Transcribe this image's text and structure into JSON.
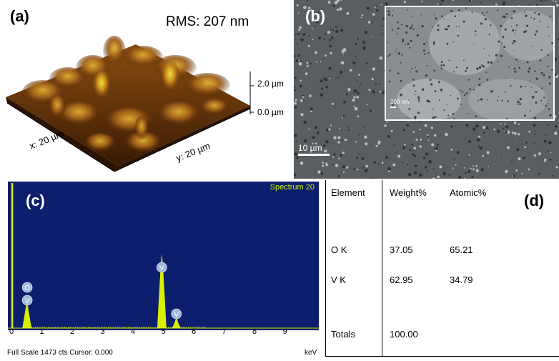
{
  "panel_a": {
    "label": "(a)",
    "rms": "RMS: 207 nm",
    "z_ticks": [
      "2.0 µm",
      "0.0 µm"
    ],
    "x_axis": "x: 20 µm",
    "y_axis": "y: 20 µm",
    "colors": {
      "low": "#3a1a05",
      "mid": "#9a5a12",
      "high": "#f2e43a"
    }
  },
  "panel_b": {
    "label": "(b)",
    "scale_bar": "10 µm",
    "inset_scale_bar": "200 nm"
  },
  "panel_c": {
    "label": "(c)",
    "spectrum_name": "Spectrum 20",
    "footer": "Full Scale 1473 cts Cursor: 0.000",
    "unit": "keV",
    "background": "#0d1e6e",
    "peak_color": "#d8f000",
    "chart_data": {
      "type": "line",
      "x_ticks": [
        "0",
        "1",
        "2",
        "3",
        "4",
        "5",
        "6",
        "7",
        "8",
        "9"
      ],
      "xlim": [
        0,
        10
      ],
      "peaks": [
        {
          "element": "V",
          "energy": 0.51,
          "height": 0.2
        },
        {
          "element": "O",
          "energy": 0.52,
          "height": 0.2
        },
        {
          "element": "V",
          "energy": 4.95,
          "height": 0.53
        },
        {
          "element": "V",
          "energy": 5.43,
          "height": 0.09
        }
      ],
      "peak_labels": [
        "O",
        "V",
        "V",
        "V"
      ]
    }
  },
  "panel_d": {
    "label": "(d)",
    "headers": [
      "Element",
      "Weight%",
      "Atomic%"
    ],
    "rows": [
      [
        "O K",
        "37.05",
        "65.21"
      ],
      [
        "V K",
        "62.95",
        "34.79"
      ],
      [
        "Totals",
        "100.00",
        ""
      ]
    ]
  }
}
